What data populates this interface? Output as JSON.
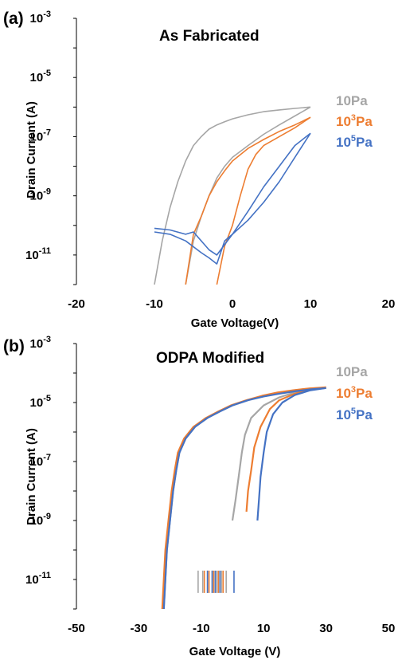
{
  "chart_data": [
    {
      "type": "line",
      "panel_label": "(a)",
      "title": "As Fabricated",
      "xlabel": "Gate Voltage(V)",
      "ylabel": "Drain Current (A)",
      "xlim": [
        -20,
        20
      ],
      "ylim": [
        1e-12,
        0.001
      ],
      "yscale": "log",
      "xticks": [
        "-20",
        "-10",
        "0",
        "10",
        "20"
      ],
      "yticks": [
        {
          "base": "10",
          "exp": "-3"
        },
        {
          "base": "10",
          "exp": "-5"
        },
        {
          "base": "10",
          "exp": "-7"
        },
        {
          "base": "10",
          "exp": "-9"
        },
        {
          "base": "10",
          "exp": "-11"
        }
      ],
      "legend_position": "right",
      "series": [
        {
          "name": "10Pa",
          "name_base": "10Pa",
          "color": "#A6A6A6",
          "forward": {
            "x": [
              -10,
              -9,
              -8,
              -7,
              -6,
              -5,
              -4,
              -3,
              -2,
              -1,
              0,
              2,
              4,
              6,
              8,
              10
            ],
            "y": [
              1e-12,
              3e-11,
              4e-10,
              3e-09,
              1.5e-08,
              5e-08,
              1e-07,
              1.8e-07,
              2.5e-07,
              3.2e-07,
              4e-07,
              5.5e-07,
              7e-07,
              8e-07,
              9e-07,
              1e-06
            ]
          },
          "reverse": {
            "x": [
              10,
              8,
              6,
              4,
              2,
              0,
              -1,
              -2,
              -3,
              -4,
              -5,
              -6
            ],
            "y": [
              1e-06,
              5e-07,
              2.5e-07,
              1.2e-07,
              5e-08,
              2e-08,
              1e-08,
              4e-09,
              1e-09,
              2e-10,
              3e-11,
              1e-12
            ]
          }
        },
        {
          "name": "10³Pa",
          "name_base": "10",
          "name_sup": "3",
          "name_suffix": "Pa",
          "color": "#ED7D31",
          "forward": {
            "x": [
              -6,
              -5,
              -4,
              -3,
              -2,
              -1,
              0,
              2,
              4,
              6,
              8,
              10
            ],
            "y": [
              1e-12,
              5e-11,
              2e-10,
              1e-09,
              3e-09,
              7e-09,
              1.5e-08,
              4e-08,
              8e-08,
              1.5e-07,
              2.5e-07,
              4.5e-07
            ]
          },
          "reverse": {
            "x": [
              10,
              8,
              6,
              4,
              3,
              2,
              1,
              0,
              -1,
              -2
            ],
            "y": [
              4.5e-07,
              2e-07,
              1e-07,
              5e-08,
              2.5e-08,
              8e-09,
              1e-09,
              1e-10,
              2e-11,
              1e-12
            ]
          }
        },
        {
          "name": "10⁵Pa",
          "name_base": "10",
          "name_sup": "5",
          "name_suffix": "Pa",
          "color": "#4472C4",
          "forward": {
            "x": [
              -10,
              -8,
              -6,
              -5,
              -4,
              -3,
              -2,
              0,
              2,
              4,
              6,
              8,
              10
            ],
            "y": [
              8e-11,
              7e-11,
              5e-11,
              6e-11,
              3e-11,
              1.5e-11,
              1e-11,
              5e-11,
              3e-10,
              2e-09,
              1e-08,
              5e-08,
              1.3e-07
            ]
          },
          "reverse": {
            "x": [
              10,
              8,
              6,
              4,
              2,
              0,
              -1,
              -2,
              -3,
              -4,
              -6,
              -8,
              -10
            ],
            "y": [
              1.3e-07,
              2e-08,
              3e-09,
              6e-10,
              1.5e-10,
              5e-11,
              3e-11,
              5e-12,
              8e-12,
              1.2e-11,
              3e-11,
              5e-11,
              6e-11
            ]
          }
        }
      ]
    },
    {
      "type": "line",
      "panel_label": "(b)",
      "title": "ODPA Modified",
      "xlabel": "Gate Voltage (V)",
      "ylabel": "Drain Current (A)",
      "xlim": [
        -50,
        50
      ],
      "ylim": [
        1e-12,
        0.001
      ],
      "yscale": "log",
      "xticks": [
        "-50",
        "-30",
        "-10",
        "10",
        "30",
        "50"
      ],
      "yticks": [
        {
          "base": "10",
          "exp": "-3"
        },
        {
          "base": "10",
          "exp": "-5"
        },
        {
          "base": "10",
          "exp": "-7"
        },
        {
          "base": "10",
          "exp": "-9"
        },
        {
          "base": "10",
          "exp": "-11"
        }
      ],
      "legend_position": "right",
      "series": [
        {
          "name": "10Pa",
          "name_base": "10Pa",
          "color": "#A6A6A6",
          "forward": {
            "x": [
              -22,
              -21,
              -20,
              -19,
              -18,
              -17,
              -15,
              -12,
              -8,
              -4,
              0,
              5,
              10,
              15,
              20,
              25,
              30
            ],
            "y": [
              1e-12,
              1e-10,
              1e-09,
              1e-08,
              5e-08,
              2e-07,
              6e-07,
              1.5e-06,
              3e-06,
              5e-06,
              8e-06,
              1.2e-05,
              1.7e-05,
              2.2e-05,
              2.6e-05,
              3e-05,
              3.2e-05
            ]
          },
          "reverse": {
            "x": [
              30,
              25,
              20,
              15,
              10,
              6,
              4,
              3,
              2,
              1,
              0
            ],
            "y": [
              3.2e-05,
              2.8e-05,
              2.2e-05,
              1.5e-05,
              8e-06,
              3e-06,
              8e-07,
              2e-07,
              3e-08,
              5e-09,
              1e-09
            ]
          }
        },
        {
          "name": "10³Pa",
          "name_base": "10",
          "name_sup": "3",
          "name_suffix": "Pa",
          "color": "#ED7D31",
          "forward": {
            "x": [
              -22.5,
              -21.5,
              -20.5,
              -19.5,
              -18.5,
              -17.5,
              -15.5,
              -12.5,
              -8.5,
              -4.5,
              -0.5,
              4.5,
              9.5,
              14.5,
              19.5,
              24.5,
              30
            ],
            "y": [
              1e-12,
              1e-10,
              1e-09,
              1e-08,
              5e-08,
              2e-07,
              6e-07,
              1.5e-06,
              3e-06,
              5e-06,
              8e-06,
              1.2e-05,
              1.7e-05,
              2.2e-05,
              2.6e-05,
              3e-05,
              3.3e-05
            ]
          },
          "reverse": {
            "x": [
              30,
              25,
              20,
              15,
              12,
              9,
              7,
              6,
              5,
              4.5
            ],
            "y": [
              3.3e-05,
              2.8e-05,
              2e-05,
              1.2e-05,
              6e-06,
              1.5e-06,
              3e-07,
              5e-08,
              1e-08,
              2e-09
            ]
          }
        },
        {
          "name": "10⁵Pa",
          "name_base": "10",
          "name_sup": "5",
          "name_suffix": "Pa",
          "color": "#4472C4",
          "forward": {
            "x": [
              -22,
              -21,
              -20,
              -19,
              -18,
              -17,
              -15,
              -12,
              -8,
              -4,
              0,
              5,
              10,
              15,
              20,
              25,
              30
            ],
            "y": [
              1e-12,
              1e-10,
              1e-09,
              1e-08,
              5e-08,
              2e-07,
              6e-07,
              1.5e-06,
              3e-06,
              5e-06,
              8e-06,
              1.2e-05,
              1.6e-05,
              2e-05,
              2.4e-05,
              2.8e-05,
              3.1e-05
            ]
          },
          "reverse": {
            "x": [
              30,
              25,
              20,
              16,
              13,
              11,
              10,
              9,
              8.5,
              8
            ],
            "y": [
              3.1e-05,
              2.6e-05,
              1.8e-05,
              1e-05,
              4e-06,
              1e-06,
              2e-07,
              3e-08,
              5e-09,
              1e-09
            ]
          }
        }
      ],
      "noise_clusters": [
        {
          "color": "#A6A6A6",
          "x": [
            -11,
            -9.5,
            -8,
            -6.5,
            -5,
            -3.5,
            -2
          ]
        },
        {
          "color": "#ED7D31",
          "x": [
            -9,
            -7.5,
            -6,
            -4.5,
            -3
          ]
        },
        {
          "color": "#4472C4",
          "x": [
            -8,
            -6.5,
            -5.5,
            -4,
            0.5
          ]
        }
      ]
    }
  ]
}
